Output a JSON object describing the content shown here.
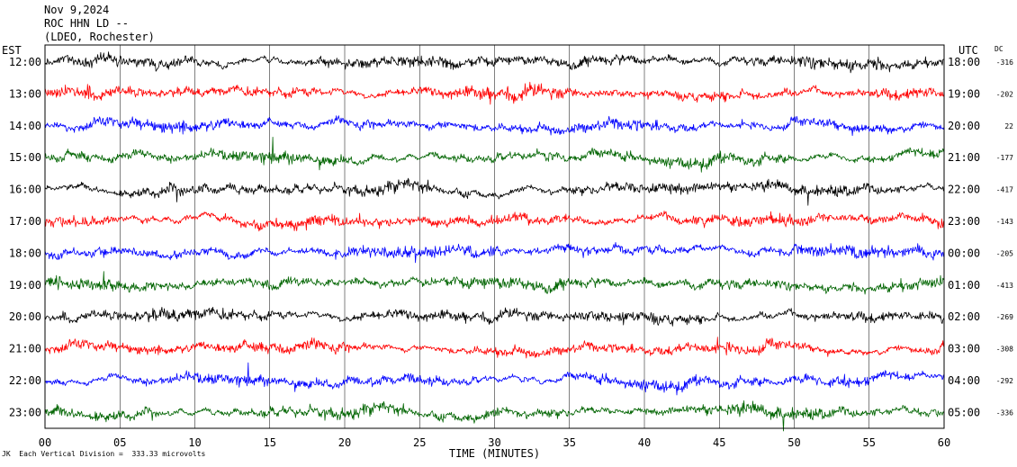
{
  "header": {
    "line1": "Nov 9,2024",
    "line2": "ROC HHN LD --",
    "line3": "(LDEO, Rochester)"
  },
  "left_label": "EST",
  "right_label": "UTC",
  "dc_label": "DC",
  "footer": "JK  Each Vertical Division =  333.33 microvolts",
  "colors": {
    "trace_cycle": [
      "#000000",
      "#ff0000",
      "#0000ff",
      "#006400"
    ],
    "grid": "#000000"
  },
  "chart_data": {
    "type": "line",
    "title": "",
    "xlabel": "TIME (MINUTES)",
    "ylabel": "",
    "xlim": [
      0,
      60
    ],
    "x_ticks": [
      "00",
      "05",
      "10",
      "15",
      "20",
      "25",
      "30",
      "35",
      "40",
      "45",
      "50",
      "55",
      "60"
    ],
    "grid": true,
    "series": [
      {
        "est": "12:00",
        "utc": "18:00",
        "dc": "-316",
        "color": "#000000"
      },
      {
        "est": "13:00",
        "utc": "19:00",
        "dc": "-202",
        "color": "#ff0000"
      },
      {
        "est": "14:00",
        "utc": "20:00",
        "dc": "22",
        "color": "#0000ff"
      },
      {
        "est": "15:00",
        "utc": "21:00",
        "dc": "-177",
        "color": "#006400"
      },
      {
        "est": "16:00",
        "utc": "22:00",
        "dc": "-417",
        "color": "#000000"
      },
      {
        "est": "17:00",
        "utc": "23:00",
        "dc": "-143",
        "color": "#ff0000"
      },
      {
        "est": "18:00",
        "utc": "00:00",
        "dc": "-205",
        "color": "#0000ff"
      },
      {
        "est": "19:00",
        "utc": "01:00",
        "dc": "-413",
        "color": "#006400"
      },
      {
        "est": "20:00",
        "utc": "02:00",
        "dc": "-269",
        "color": "#000000"
      },
      {
        "est": "21:00",
        "utc": "03:00",
        "dc": "-308",
        "color": "#ff0000"
      },
      {
        "est": "22:00",
        "utc": "04:00",
        "dc": "-292",
        "color": "#0000ff"
      },
      {
        "est": "23:00",
        "utc": "05:00",
        "dc": "-336",
        "color": "#006400"
      }
    ]
  }
}
